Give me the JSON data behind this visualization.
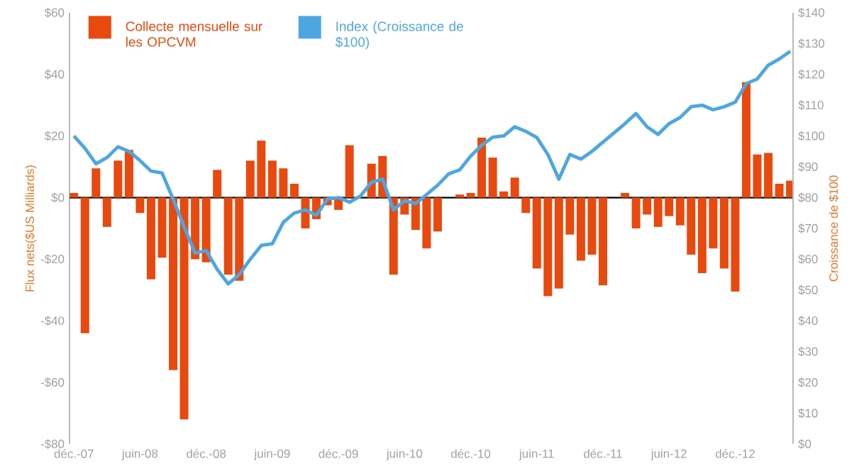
{
  "chart_data": {
    "type": "bar",
    "categories": [
      "déc.-07",
      null,
      null,
      null,
      null,
      null,
      "juin-08",
      null,
      null,
      null,
      null,
      null,
      "déc.-08",
      null,
      null,
      null,
      null,
      null,
      "juin-09",
      null,
      null,
      null,
      null,
      null,
      "déc.-09",
      null,
      null,
      null,
      null,
      null,
      "juin-10",
      null,
      null,
      null,
      null,
      null,
      "déc.-10",
      null,
      null,
      null,
      null,
      null,
      "juin-11",
      null,
      null,
      null,
      null,
      null,
      "déc.-11",
      null,
      null,
      null,
      null,
      null,
      "juin-12",
      null,
      null,
      null,
      null,
      null,
      "déc.-12",
      null,
      null,
      null,
      null,
      null
    ],
    "series": [
      {
        "name": "Collecte mensuelle sur les OPCVM",
        "color": "#e8490f",
        "values": [
          1.5,
          -44,
          9.5,
          -9.5,
          12,
          15.5,
          -5,
          -26.5,
          -19.5,
          -56,
          -72,
          -20,
          -21,
          9,
          -25,
          -27,
          12,
          18.5,
          12,
          9.5,
          4.5,
          -10,
          -7,
          -2.5,
          -4,
          17,
          0,
          11,
          13.5,
          -25,
          -5.5,
          -10.5,
          -16.5,
          -11,
          0,
          1,
          1.5,
          19.5,
          13,
          2,
          6.5,
          -5,
          -23,
          -32,
          -29.5,
          -12,
          -20.5,
          -18.5,
          -28.5,
          0,
          1.5,
          -10,
          -5.5,
          -9.5,
          -6,
          -9,
          -18.5,
          -24.5,
          -16.5,
          -23,
          -30.5,
          37.5,
          14,
          14.5,
          4.5,
          5.5
        ]
      },
      {
        "name": "Index (Croissance de $100)",
        "type": "line",
        "axis": "y2",
        "color": "#4ea6e0",
        "values": [
          100,
          96,
          91,
          93,
          96.5,
          95,
          92,
          88.6,
          88,
          79.5,
          70.5,
          62,
          62.8,
          56.7,
          52,
          55,
          60,
          64.5,
          65,
          72,
          75,
          76,
          74.3,
          79.5,
          80,
          78.5,
          80.5,
          85,
          86,
          76,
          79,
          78,
          81,
          84,
          87.7,
          89,
          93.5,
          97,
          99.6,
          100,
          103,
          101.5,
          99.5,
          94,
          86,
          94,
          92.5,
          95,
          98,
          101,
          104,
          107.3,
          103,
          100.5,
          104,
          106,
          109.5,
          110,
          108.5,
          109.5,
          111,
          117,
          118.5,
          123,
          125,
          127.5
        ]
      }
    ],
    "ylabel": "Flux nets($US Milliards)",
    "y2label": "Croissance de $100",
    "ylim": [
      -80,
      60
    ],
    "yticks": [
      {
        "value": -80,
        "label": "-$80"
      },
      {
        "value": -60,
        "label": "-$60"
      },
      {
        "value": -40,
        "label": "-$40"
      },
      {
        "value": -20,
        "label": "-$20"
      },
      {
        "value": 0,
        "label": "$0"
      },
      {
        "value": 20,
        "label": "$20"
      },
      {
        "value": 40,
        "label": "$40"
      },
      {
        "value": 60,
        "label": "$60"
      }
    ],
    "y2lim": [
      0,
      140
    ],
    "y2ticks": [
      {
        "value": 0,
        "label": "$0"
      },
      {
        "value": 10,
        "label": "$10"
      },
      {
        "value": 20,
        "label": "$20"
      },
      {
        "value": 30,
        "label": "$30"
      },
      {
        "value": 40,
        "label": "$40"
      },
      {
        "value": 50,
        "label": "$50"
      },
      {
        "value": 60,
        "label": "$60"
      },
      {
        "value": 70,
        "label": "$70"
      },
      {
        "value": 80,
        "label": "$80"
      },
      {
        "value": 90,
        "label": "$90"
      },
      {
        "value": 100,
        "label": "$100"
      },
      {
        "value": 110,
        "label": "$110"
      },
      {
        "value": 120,
        "label": "$120"
      },
      {
        "value": 130,
        "label": "$130"
      },
      {
        "value": 140,
        "label": "$140"
      }
    ],
    "ref_lines": [
      {
        "axis": "y",
        "value": 0,
        "color": "#000000"
      }
    ],
    "legend": "top left",
    "marker": "none"
  }
}
